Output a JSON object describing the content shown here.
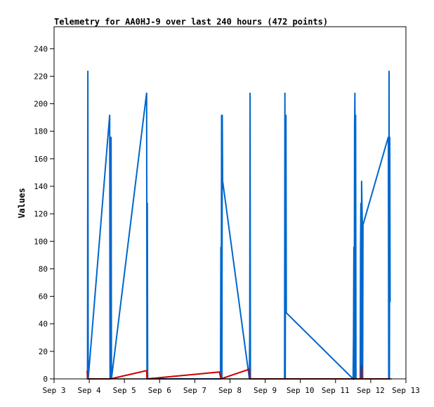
{
  "chart_data": {
    "type": "line",
    "title": "Telemetry for AA0HJ-9 over last 240 hours (472 points)",
    "xlabel": "",
    "ylabel": "Values",
    "x_tick_labels": [
      "Sep 3",
      "Sep 4",
      "Sep 5",
      "Sep 6",
      "Sep 7",
      "Sep 8",
      "Sep 9",
      "Sep 10",
      "Sep 11",
      "Sep 12",
      "Sep 13"
    ],
    "y_tick_labels": [
      "0",
      "20",
      "40",
      "60",
      "80",
      "100",
      "120",
      "140",
      "160",
      "180",
      "200",
      "220",
      "240"
    ],
    "ylim": [
      0,
      256
    ],
    "xlim_days": [
      3,
      13
    ],
    "grid": false,
    "series": [
      {
        "color": "#0066cc",
        "x_days": [
          3.95,
          3.96,
          3.97,
          4.58,
          4.59,
          4.6,
          4.61,
          4.62,
          4.63,
          5.63,
          5.64,
          5.65,
          5.66,
          7.73,
          7.74,
          7.75,
          7.76,
          7.77,
          7.78,
          7.79,
          8.55,
          8.56,
          8.57,
          8.58,
          9.55,
          9.56,
          9.57,
          9.58,
          9.59,
          9.6,
          11.5,
          11.51,
          11.52,
          11.53,
          11.54,
          11.55,
          11.56,
          11.57,
          11.58,
          11.7,
          11.71,
          11.72,
          11.73,
          11.74,
          11.75,
          11.76,
          11.77,
          11.78,
          12.5,
          12.51,
          12.52,
          12.53,
          12.54,
          12.55
        ],
        "values": [
          0,
          224,
          0,
          192,
          0,
          176,
          0,
          176,
          0,
          208,
          0,
          128,
          0,
          0,
          96,
          0,
          192,
          0,
          192,
          144,
          0,
          32,
          208,
          0,
          0,
          208,
          0,
          176,
          192,
          48,
          0,
          32,
          96,
          0,
          184,
          208,
          0,
          192,
          0,
          0,
          96,
          128,
          0,
          144,
          128,
          112,
          0,
          112,
          176,
          0,
          224,
          0,
          176,
          56
        ]
      },
      {
        "color": "#cc0000",
        "x_days": [
          3.94,
          3.95,
          3.96,
          4.6,
          5.63,
          5.64,
          7.7,
          7.74,
          8.55,
          8.56,
          11.73,
          11.74,
          11.75,
          12.55
        ],
        "values": [
          6,
          0,
          0,
          0,
          6,
          0,
          5,
          0,
          7,
          0,
          0,
          10,
          0,
          0
        ]
      },
      {
        "color": "#000000",
        "x_days": [
          3.94,
          12.6
        ],
        "values": [
          0,
          0
        ]
      }
    ]
  }
}
